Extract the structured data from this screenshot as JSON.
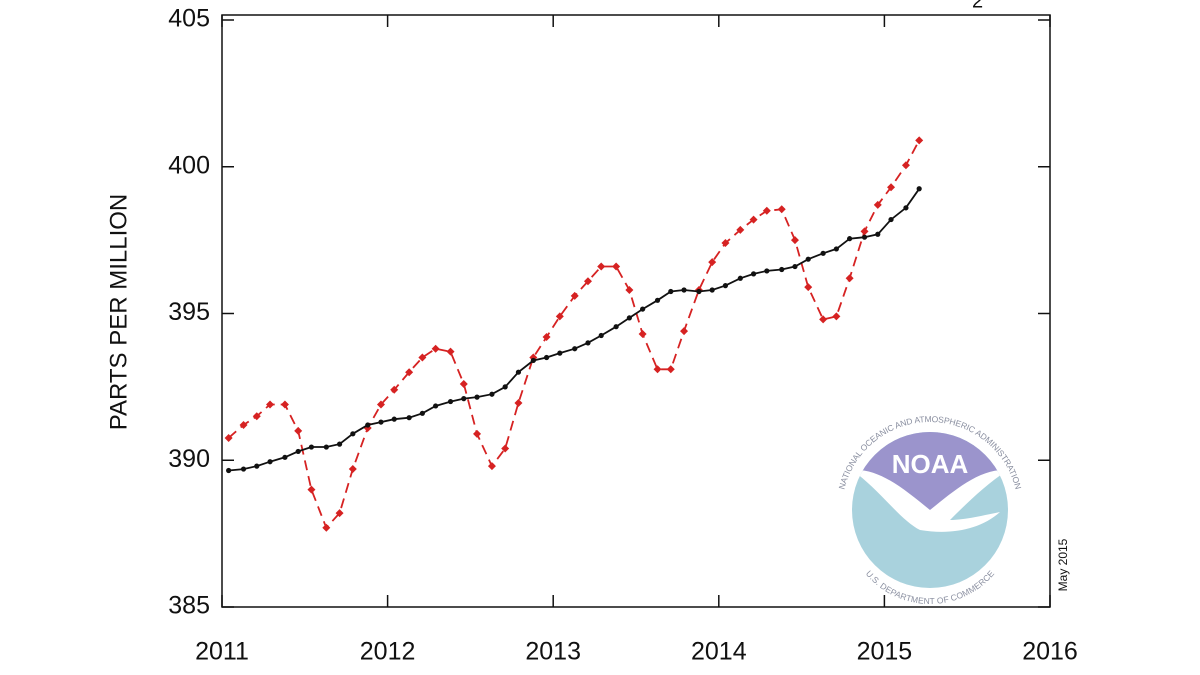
{
  "chart_data": {
    "type": "line",
    "title_fragment": "2",
    "ylabel": "PARTS PER MILLION",
    "date_note": "May 2015",
    "logo": {
      "text": "NOAA",
      "ring_top": "NATIONAL OCEANIC AND ATMOSPHERIC ADMINISTRATION",
      "ring_bottom": "U.S. DEPARTMENT OF COMMERCE"
    },
    "xlim": [
      2011,
      2016
    ],
    "xticks": [
      2011,
      2012,
      2013,
      2014,
      2015,
      2016
    ],
    "ylim": [
      385,
      405
    ],
    "yticks": [
      385,
      390,
      395,
      400,
      405
    ],
    "x": [
      2011.04,
      2011.13,
      2011.21,
      2011.29,
      2011.38,
      2011.46,
      2011.54,
      2011.63,
      2011.71,
      2011.79,
      2011.88,
      2011.96,
      2012.04,
      2012.13,
      2012.21,
      2012.29,
      2012.38,
      2012.46,
      2012.54,
      2012.63,
      2012.71,
      2012.79,
      2012.88,
      2012.96,
      2013.04,
      2013.13,
      2013.21,
      2013.29,
      2013.38,
      2013.46,
      2013.54,
      2013.63,
      2013.71,
      2013.79,
      2013.88,
      2013.96,
      2014.04,
      2014.13,
      2014.21,
      2014.29,
      2014.38,
      2014.46,
      2014.54,
      2014.63,
      2014.71,
      2014.79,
      2014.88,
      2014.96,
      2015.04,
      2015.13,
      2015.21
    ],
    "series": [
      {
        "color": "#d62222",
        "dashed": true,
        "marker": "diamond",
        "values": [
          390.76,
          391.2,
          391.5,
          391.9,
          391.9,
          391.0,
          389.0,
          387.7,
          388.2,
          389.7,
          391.1,
          391.9,
          392.4,
          393.0,
          393.5,
          393.8,
          393.7,
          392.6,
          390.9,
          389.8,
          390.4,
          391.95,
          393.5,
          394.2,
          394.9,
          395.6,
          396.1,
          396.6,
          396.6,
          395.8,
          394.3,
          393.1,
          393.1,
          394.4,
          395.8,
          396.75,
          397.4,
          397.85,
          398.2,
          398.5,
          398.55,
          397.5,
          395.9,
          394.8,
          394.9,
          396.2,
          397.8,
          398.7,
          399.3,
          400.05,
          400.9
        ]
      },
      {
        "color": "#111111",
        "dashed": false,
        "marker": "circle",
        "values": [
          389.65,
          389.7,
          389.8,
          389.95,
          390.1,
          390.3,
          390.45,
          390.45,
          390.55,
          390.9,
          391.2,
          391.3,
          391.4,
          391.45,
          391.6,
          391.85,
          392.0,
          392.1,
          392.15,
          392.25,
          392.5,
          393.0,
          393.4,
          393.5,
          393.65,
          393.8,
          394.0,
          394.25,
          394.55,
          394.85,
          395.15,
          395.45,
          395.75,
          395.8,
          395.75,
          395.8,
          395.95,
          396.2,
          396.35,
          396.45,
          396.5,
          396.6,
          396.85,
          397.05,
          397.2,
          397.55,
          397.6,
          397.7,
          398.2,
          398.6,
          399.25
        ]
      }
    ]
  }
}
